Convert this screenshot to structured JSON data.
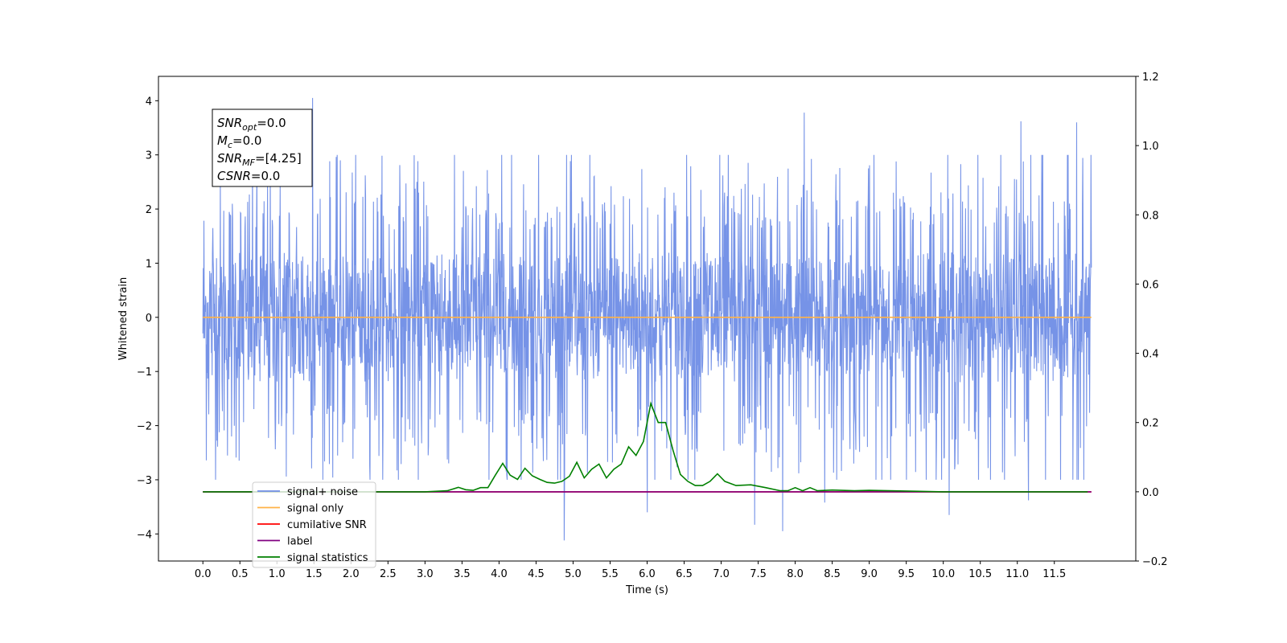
{
  "chart_data": {
    "type": "line",
    "xlabel": "Time (s)",
    "ylabel": "Whitened strain",
    "xlim": [
      -0.6,
      12.6
    ],
    "ylim": [
      -4.5,
      4.45
    ],
    "y2lim": [
      -0.2,
      1.2
    ],
    "xticks": [
      "0.0",
      "0.5",
      "1.0",
      "1.5",
      "2.0",
      "2.5",
      "3.0",
      "3.5",
      "4.0",
      "4.5",
      "5.0",
      "5.5",
      "6.0",
      "6.5",
      "7.0",
      "7.5",
      "8.0",
      "8.5",
      "9.0",
      "9.5",
      "10.0",
      "10.5",
      "11.0",
      "11.5"
    ],
    "yticks": [
      "−4",
      "−3",
      "−2",
      "−1",
      "0",
      "1",
      "2",
      "3",
      "4"
    ],
    "y2ticks": [
      "−0.2",
      "0.0",
      "0.2",
      "0.4",
      "0.6",
      "0.8",
      "1.0",
      "1.2"
    ],
    "grid": false,
    "legend_position": "lower-left",
    "series": [
      {
        "name": "signal+ noise",
        "axis": "left",
        "color": "#6f8de6",
        "style": "noise",
        "x_range": [
          0.0,
          12.0
        ],
        "envelope": [
          -2.4,
          2.5
        ],
        "spikes": [
          {
            "x": 1.48,
            "y": 4.05
          },
          {
            "x": 8.12,
            "y": 3.78
          },
          {
            "x": 11.05,
            "y": 3.62
          },
          {
            "x": 11.8,
            "y": 3.6
          },
          {
            "x": 6.0,
            "y": 3.3
          },
          {
            "x": 4.88,
            "y": -4.12
          },
          {
            "x": 7.83,
            "y": -3.95
          },
          {
            "x": 7.45,
            "y": -3.83
          },
          {
            "x": 10.08,
            "y": -3.65
          },
          {
            "x": 6.0,
            "y": -3.6
          },
          {
            "x": 8.4,
            "y": -3.42
          },
          {
            "x": 11.15,
            "y": -3.38
          }
        ]
      },
      {
        "name": "signal only",
        "axis": "left",
        "color": "#ffb347",
        "x": [
          0.0,
          12.0
        ],
        "y": [
          0.0,
          0.0
        ]
      },
      {
        "name": "cumilative SNR",
        "axis": "right",
        "color": "#ff0000",
        "x": [
          0.0,
          12.0
        ],
        "y": [
          0.0,
          0.0
        ]
      },
      {
        "name": "label",
        "axis": "right",
        "color": "#800080",
        "x": [
          0.0,
          12.0
        ],
        "y": [
          0.0,
          0.0
        ]
      },
      {
        "name": "signal statistics",
        "axis": "right",
        "color": "#008000",
        "x": [
          0.0,
          2.0,
          3.0,
          3.3,
          3.45,
          3.55,
          3.65,
          3.75,
          3.85,
          3.95,
          4.05,
          4.15,
          4.25,
          4.35,
          4.45,
          4.55,
          4.65,
          4.75,
          4.85,
          4.95,
          5.05,
          5.15,
          5.25,
          5.35,
          5.45,
          5.55,
          5.65,
          5.75,
          5.85,
          5.95,
          6.05,
          6.15,
          6.25,
          6.35,
          6.45,
          6.55,
          6.65,
          6.75,
          6.85,
          6.95,
          7.05,
          7.2,
          7.4,
          7.6,
          7.8,
          7.9,
          8.0,
          8.1,
          8.2,
          8.3,
          8.5,
          8.8,
          9.0,
          10.0,
          11.0,
          11.95
        ],
        "y": [
          0.0,
          0.0,
          0.0,
          0.003,
          0.013,
          0.006,
          0.004,
          0.012,
          0.012,
          0.048,
          0.082,
          0.048,
          0.036,
          0.068,
          0.046,
          0.036,
          0.027,
          0.025,
          0.03,
          0.045,
          0.085,
          0.04,
          0.065,
          0.08,
          0.04,
          0.065,
          0.08,
          0.13,
          0.105,
          0.145,
          0.255,
          0.2,
          0.2,
          0.12,
          0.05,
          0.03,
          0.018,
          0.018,
          0.03,
          0.052,
          0.03,
          0.018,
          0.02,
          0.012,
          0.003,
          0.003,
          0.012,
          0.003,
          0.012,
          0.003,
          0.005,
          0.003,
          0.004,
          0.0,
          0.0,
          0.0
        ]
      }
    ],
    "annotation": {
      "lines": [
        {
          "name": "SNR",
          "sub": "opt",
          "value": "=0.0"
        },
        {
          "name": "M",
          "sub": "c",
          "value": "=0.0"
        },
        {
          "name": "SNR",
          "sub": "MF",
          "value": "=[4.25]"
        },
        {
          "name": "CSNR",
          "sub": "",
          "value": "=0.0"
        }
      ]
    },
    "legend_overlap_text": "signal only"
  }
}
